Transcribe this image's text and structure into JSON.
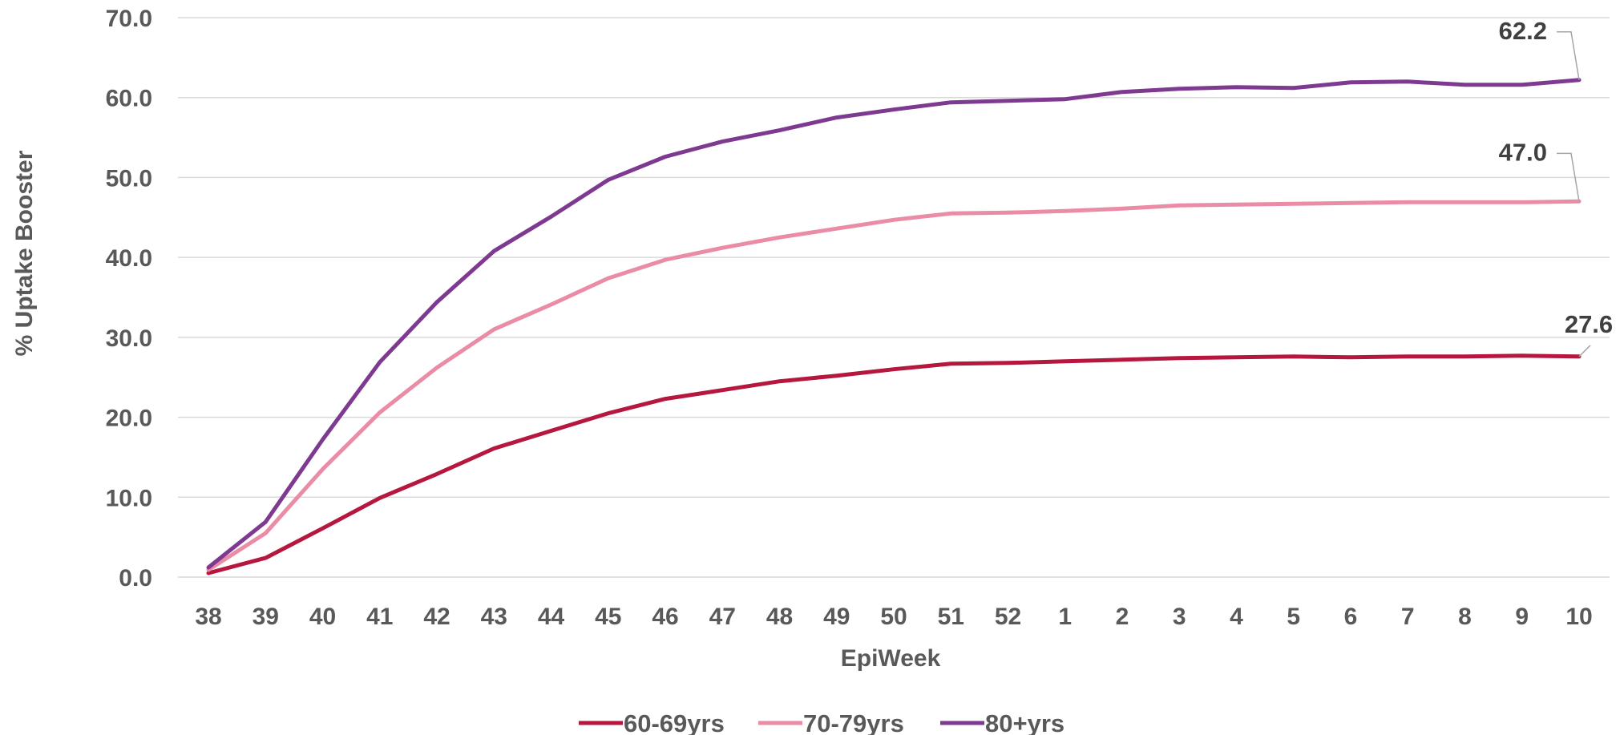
{
  "chart_data": {
    "type": "line",
    "title": "",
    "xlabel": "EpiWeek",
    "ylabel": "% Uptake Booster",
    "ylim": [
      0,
      70
    ],
    "yticks": [
      "0.0",
      "10.0",
      "20.0",
      "30.0",
      "40.0",
      "50.0",
      "60.0",
      "70.0"
    ],
    "grid": true,
    "legend_position": "bottom",
    "categories": [
      "38",
      "39",
      "40",
      "41",
      "42",
      "43",
      "44",
      "45",
      "46",
      "47",
      "48",
      "49",
      "50",
      "51",
      "52",
      "1",
      "2",
      "3",
      "4",
      "5",
      "6",
      "7",
      "8",
      "9",
      "10"
    ],
    "series": [
      {
        "name": "60-69yrs",
        "color": "#B5173F",
        "values": [
          0.5,
          2.4,
          6.1,
          9.9,
          12.9,
          16.1,
          18.3,
          20.5,
          22.3,
          23.4,
          24.5,
          25.2,
          26.0,
          26.7,
          26.8,
          27.0,
          27.2,
          27.4,
          27.5,
          27.6,
          27.5,
          27.6,
          27.6,
          27.7,
          27.6
        ],
        "end_label": "27.6"
      },
      {
        "name": "70-79yrs",
        "color": "#EB8CA6",
        "values": [
          0.9,
          5.5,
          13.5,
          20.6,
          26.2,
          31.0,
          34.1,
          37.4,
          39.7,
          41.2,
          42.5,
          43.6,
          44.7,
          45.5,
          45.6,
          45.8,
          46.1,
          46.5,
          46.6,
          46.7,
          46.8,
          46.9,
          46.9,
          46.9,
          47.0
        ],
        "end_label": "47.0"
      },
      {
        "name": "80+yrs",
        "color": "#7E3A91",
        "values": [
          1.2,
          6.9,
          17.2,
          26.9,
          34.4,
          40.8,
          45.1,
          49.7,
          52.6,
          54.5,
          55.9,
          57.5,
          58.5,
          59.4,
          59.6,
          59.8,
          60.7,
          61.1,
          61.3,
          61.2,
          61.9,
          62.0,
          61.6,
          61.6,
          62.2
        ],
        "end_label": "62.2"
      }
    ]
  }
}
